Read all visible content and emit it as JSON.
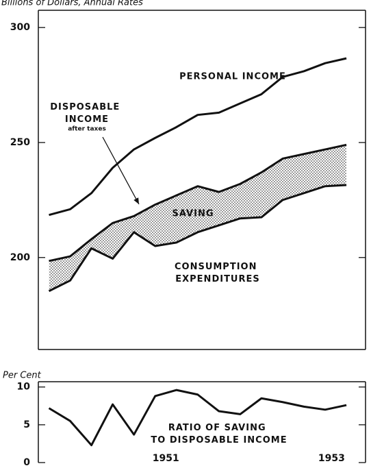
{
  "chart_data": [
    {
      "type": "line",
      "y_label": "Billions of Dollars, Annual Rates",
      "x": [
        1950.125,
        1950.375,
        1950.625,
        1950.875,
        1951.125,
        1951.375,
        1951.625,
        1951.875,
        1952.125,
        1952.375,
        1952.625,
        1952.875,
        1953.125,
        1953.375,
        1953.625
      ],
      "series": [
        {
          "name": "PERSONAL INCOME",
          "color": "#111111",
          "values": [
            218.5,
            221,
            228,
            239,
            247,
            252,
            256.7,
            262,
            263,
            267,
            271,
            278.5,
            281,
            284.5,
            286.6
          ]
        },
        {
          "name": "DISPOSABLE INCOME",
          "color": "#111111",
          "values": [
            198.5,
            200.5,
            208,
            215,
            218,
            223,
            227,
            231,
            228.5,
            232,
            237,
            243,
            245,
            247,
            249
          ]
        },
        {
          "name": "CONSUMPTION EXPENDITURES",
          "color": "#111111",
          "values": [
            185.4,
            190,
            204,
            199.5,
            211,
            205,
            206.5,
            211,
            214,
            217,
            217.5,
            225,
            228,
            231,
            231.5
          ]
        }
      ],
      "annotations": [
        "after taxes",
        "SAVING"
      ],
      "xlim": [
        1950,
        1953.85
      ],
      "ylim": [
        160,
        307.5
      ],
      "yticks": [
        200,
        250,
        300
      ]
    },
    {
      "type": "line",
      "y_label": "Per Cent",
      "x": [
        1950.125,
        1950.375,
        1950.625,
        1950.875,
        1951.125,
        1951.375,
        1951.625,
        1951.875,
        1952.125,
        1952.375,
        1952.625,
        1952.875,
        1953.125,
        1953.375,
        1953.625
      ],
      "series": [
        {
          "name": "RATIO OF SAVING TO DISPOSABLE INCOME",
          "color": "#111111",
          "values": [
            7.2,
            5.5,
            2.3,
            7.7,
            3.7,
            8.8,
            9.6,
            9.0,
            6.8,
            6.4,
            8.5,
            8.0,
            7.4,
            7.0,
            7.6
          ]
        }
      ],
      "xlim": [
        1950,
        1953.85
      ],
      "ylim": [
        0,
        10.7
      ],
      "yticks": [
        0,
        5,
        10
      ],
      "xticks": [
        {
          "value": 1951.5,
          "label": "1951"
        },
        {
          "value": 1953.45,
          "label": "1953"
        }
      ]
    }
  ]
}
